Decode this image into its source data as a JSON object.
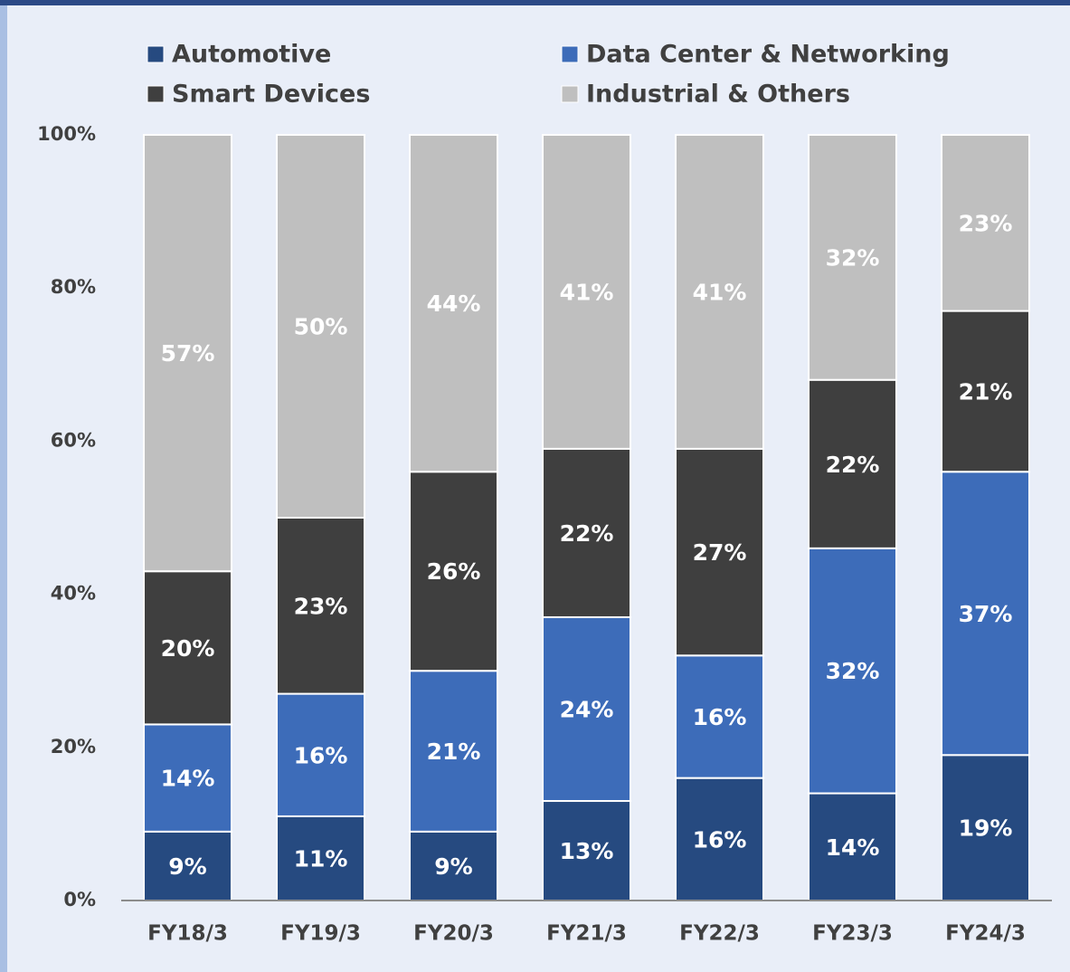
{
  "chart_data": {
    "type": "stacked_bar",
    "categories": [
      "FY18/3",
      "FY19/3",
      "FY20/3",
      "FY21/3",
      "FY22/3",
      "FY23/3",
      "FY24/3"
    ],
    "series": [
      {
        "name": "Automotive",
        "color": "#264a80",
        "values": [
          9,
          11,
          9,
          13,
          16,
          14,
          19
        ],
        "value_labels": [
          "9%",
          "11%",
          "9%",
          "13%",
          "16%",
          "14%",
          "19%"
        ]
      },
      {
        "name": "Data Center & Networking",
        "color": "#3d6cb9",
        "values": [
          14,
          16,
          21,
          24,
          16,
          32,
          37
        ],
        "value_labels": [
          "14%",
          "16%",
          "21%",
          "24%",
          "16%",
          "32%",
          "37%"
        ]
      },
      {
        "name": "Smart Devices",
        "color": "#3f3f3f",
        "values": [
          20,
          23,
          26,
          22,
          27,
          22,
          21
        ],
        "value_labels": [
          "20%",
          "23%",
          "26%",
          "22%",
          "27%",
          "22%",
          "21%"
        ]
      },
      {
        "name": "Industrial & Others",
        "color": "#bfbfbf",
        "values": [
          57,
          50,
          44,
          41,
          41,
          32,
          23
        ],
        "value_labels": [
          "57%",
          "50%",
          "44%",
          "41%",
          "41%",
          "32%",
          "23%"
        ]
      }
    ],
    "ylim": [
      0,
      100
    ],
    "yticks": [
      {
        "value": 0,
        "label": "0%"
      },
      {
        "value": 20,
        "label": "20%"
      },
      {
        "value": 40,
        "label": "40%"
      },
      {
        "value": 60,
        "label": "60%"
      },
      {
        "value": 80,
        "label": "80%"
      },
      {
        "value": 100,
        "label": "100%"
      }
    ]
  }
}
